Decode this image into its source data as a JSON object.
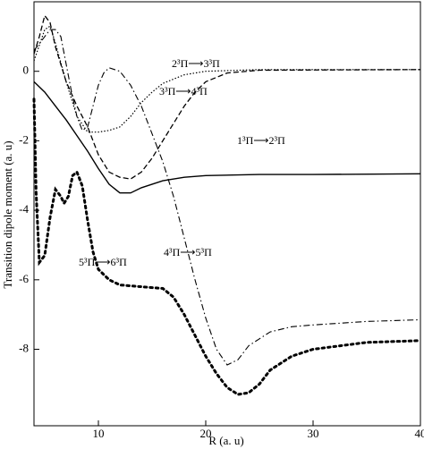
{
  "chart_data": {
    "type": "line",
    "x_label": "R (a. u)",
    "y_label": "Transition dipole moment (a. u)",
    "xlim": [
      4,
      40
    ],
    "xticks": [
      10,
      20,
      30,
      40
    ],
    "ylim": [
      -10.2,
      2
    ],
    "yticks": [
      0,
      -2,
      -4,
      -6,
      -8
    ],
    "series": [
      {
        "name": "1³Π⟶2³Π",
        "color": "#000000",
        "dash": "solid",
        "x": [
          4,
          5,
          6,
          7,
          8,
          9,
          10,
          11,
          12,
          13,
          14,
          16,
          18,
          20,
          25,
          30,
          40
        ],
        "values": [
          -0.3,
          -0.6,
          -1.0,
          -1.4,
          -1.85,
          -2.3,
          -2.8,
          -3.25,
          -3.5,
          -3.5,
          -3.35,
          -3.15,
          -3.05,
          -3.0,
          -2.97,
          -2.97,
          -2.95
        ]
      },
      {
        "name": "2³Π⟶3³Π",
        "color": "#000000",
        "dash": "dotted",
        "x": [
          4,
          5,
          5.5,
          6,
          7,
          8,
          9,
          10,
          11,
          12,
          13,
          14,
          15,
          16,
          18,
          20,
          25,
          40
        ],
        "values": [
          0.3,
          1.2,
          1.3,
          0.8,
          -0.3,
          -1.3,
          -1.75,
          -1.75,
          -1.7,
          -1.6,
          -1.3,
          -0.9,
          -0.6,
          -0.35,
          -0.1,
          0,
          0.05,
          0.05
        ]
      },
      {
        "name": "3³Π⟶4³Π",
        "color": "#000000",
        "dash": "dashed",
        "x": [
          4,
          4.5,
          5,
          5.5,
          6,
          7,
          8,
          9,
          10,
          11,
          12,
          13,
          14,
          15,
          16,
          17,
          18,
          19,
          20,
          22,
          25,
          40
        ],
        "values": [
          0.5,
          1.0,
          1.6,
          1.4,
          0.7,
          -0.3,
          -1.0,
          -1.6,
          -2.4,
          -2.9,
          -3.05,
          -3.1,
          -2.9,
          -2.5,
          -2.0,
          -1.5,
          -1.0,
          -0.6,
          -0.3,
          -0.05,
          0.03,
          0.05
        ]
      },
      {
        "name": "4³Π⟶5³Π",
        "color": "#000000",
        "dash": "dashdot",
        "x": [
          4,
          5,
          5.5,
          6,
          6.5,
          7,
          7.5,
          8,
          8.5,
          9,
          9.5,
          10,
          10.5,
          11,
          12,
          13,
          14,
          15,
          16,
          17,
          18,
          19,
          20,
          21,
          22,
          23,
          24,
          26,
          28,
          30,
          35,
          40
        ],
        "values": [
          0.6,
          1.0,
          1.2,
          1.2,
          1.0,
          0.2,
          -0.6,
          -1.3,
          -1.7,
          -1.6,
          -1.0,
          -0.4,
          -0.05,
          0.1,
          0,
          -0.4,
          -1.0,
          -1.8,
          -2.6,
          -3.6,
          -4.8,
          -6.0,
          -7.1,
          -8.0,
          -8.45,
          -8.3,
          -7.9,
          -7.5,
          -7.35,
          -7.3,
          -7.2,
          -7.15
        ]
      },
      {
        "name": "5³Π⟶6³Π",
        "color": "#000000",
        "dash": "bigdot",
        "x": [
          4,
          4.2,
          4.5,
          5,
          5.5,
          6,
          6.5,
          6.8,
          7.2,
          7.6,
          8,
          8.5,
          9,
          9.5,
          10,
          11,
          12,
          14,
          16,
          17,
          18,
          19,
          20,
          21,
          22,
          23,
          24,
          25,
          26,
          28,
          30,
          35,
          40
        ],
        "values": [
          -0.8,
          -3.5,
          -5.5,
          -5.3,
          -4.2,
          -3.4,
          -3.6,
          -3.8,
          -3.6,
          -3.0,
          -2.9,
          -3.3,
          -4.3,
          -5.2,
          -5.7,
          -6.0,
          -6.15,
          -6.2,
          -6.25,
          -6.5,
          -7.0,
          -7.6,
          -8.2,
          -8.7,
          -9.1,
          -9.3,
          -9.25,
          -9.0,
          -8.6,
          -8.2,
          -8.0,
          -7.8,
          -7.75
        ]
      }
    ]
  }
}
